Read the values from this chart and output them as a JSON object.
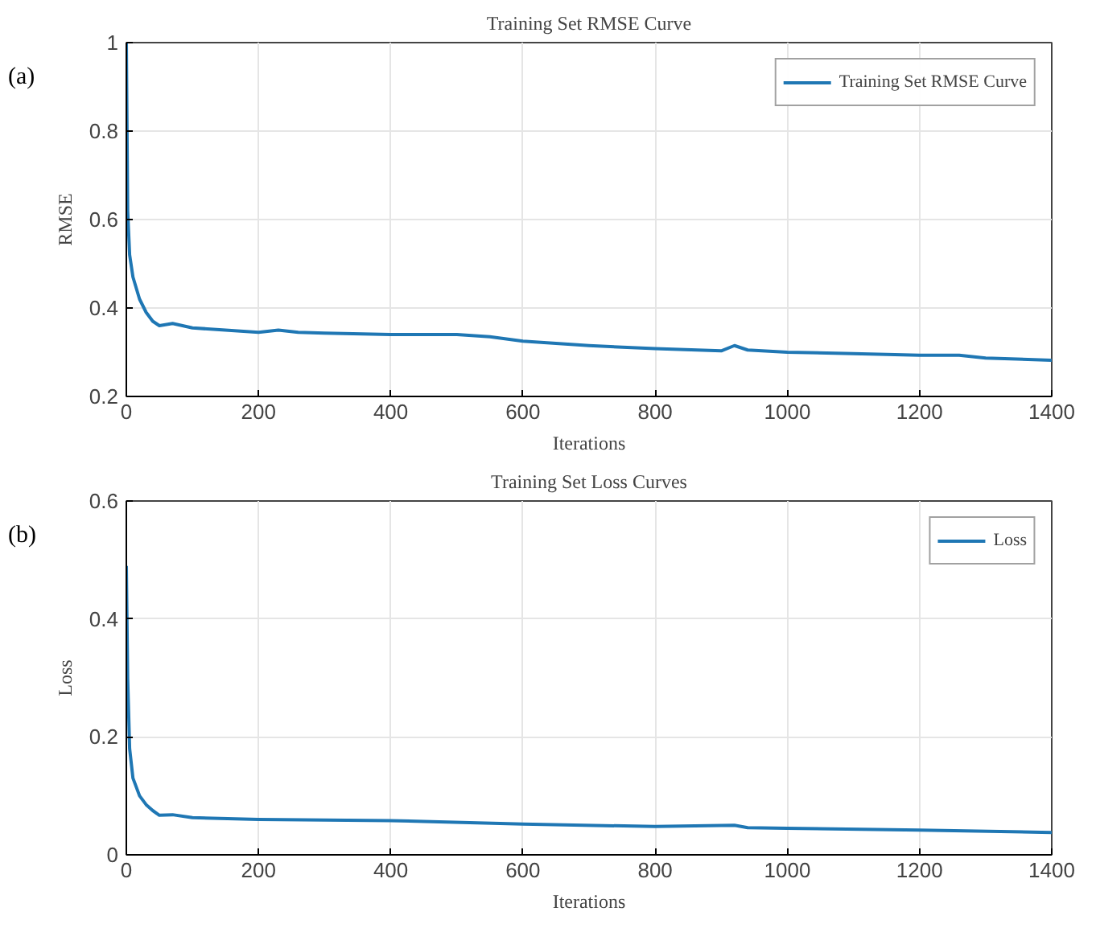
{
  "chart_data": [
    {
      "type": "line",
      "title": "Training Set RMSE Curve",
      "xlabel": "Iterations",
      "ylabel": "RMSE",
      "annotations": [
        "(a)"
      ],
      "xlim": [
        0,
        1400
      ],
      "ylim": [
        0.2,
        1
      ],
      "xticks": [
        0,
        200,
        400,
        600,
        800,
        1000,
        1200,
        1400
      ],
      "yticks": [
        0.2,
        0.4,
        0.6,
        0.8,
        1
      ],
      "grid": true,
      "legend": "top right",
      "series": [
        {
          "name": "Training Set RMSE Curve",
          "color": "#1f77b4",
          "x": [
            0,
            2,
            5,
            10,
            20,
            30,
            40,
            50,
            70,
            100,
            150,
            200,
            230,
            260,
            300,
            400,
            500,
            550,
            600,
            700,
            800,
            900,
            920,
            940,
            1000,
            1100,
            1200,
            1260,
            1300,
            1400
          ],
          "values": [
            1.0,
            0.62,
            0.52,
            0.47,
            0.42,
            0.39,
            0.37,
            0.36,
            0.365,
            0.355,
            0.35,
            0.345,
            0.35,
            0.345,
            0.343,
            0.34,
            0.34,
            0.335,
            0.325,
            0.315,
            0.308,
            0.303,
            0.315,
            0.305,
            0.3,
            0.297,
            0.293,
            0.293,
            0.287,
            0.282
          ]
        }
      ]
    },
    {
      "type": "line",
      "title": "Training Set Loss Curves",
      "xlabel": "Iterations",
      "ylabel": "Loss",
      "annotations": [
        "(b)"
      ],
      "xlim": [
        0,
        1400
      ],
      "ylim": [
        0,
        0.6
      ],
      "xticks": [
        0,
        200,
        400,
        600,
        800,
        1000,
        1200,
        1400
      ],
      "yticks": [
        0,
        0.2,
        0.4,
        0.6
      ],
      "grid": true,
      "legend": "top right",
      "series": [
        {
          "name": "Loss",
          "color": "#1f77b4",
          "x": [
            0,
            2,
            5,
            10,
            20,
            30,
            40,
            50,
            70,
            100,
            200,
            400,
            600,
            800,
            920,
            940,
            1000,
            1200,
            1400
          ],
          "values": [
            0.49,
            0.3,
            0.18,
            0.13,
            0.1,
            0.085,
            0.075,
            0.067,
            0.068,
            0.063,
            0.06,
            0.058,
            0.052,
            0.048,
            0.05,
            0.046,
            0.045,
            0.042,
            0.038
          ]
        }
      ]
    }
  ]
}
